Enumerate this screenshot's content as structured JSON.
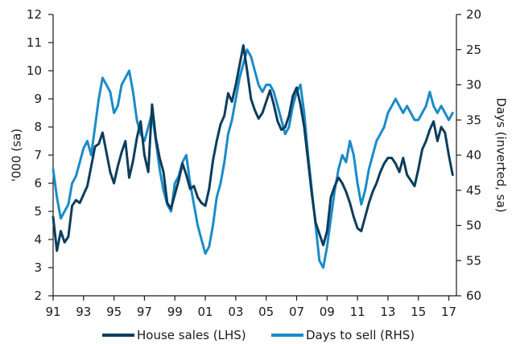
{
  "chart_data": {
    "type": "line",
    "title": "",
    "x_axis": {
      "range": [
        1991.0,
        2017.5
      ],
      "ticks": [
        1991,
        1993,
        1995,
        1997,
        1999,
        2001,
        2003,
        2005,
        2007,
        2009,
        2011,
        2013,
        2015,
        2017
      ],
      "tick_labels": [
        "91",
        "93",
        "95",
        "97",
        "99",
        "01",
        "03",
        "05",
        "07",
        "09",
        "11",
        "13",
        "15",
        "17"
      ]
    },
    "y_left": {
      "label": "'000 (sa)",
      "range": [
        2,
        12
      ],
      "ticks": [
        2,
        3,
        4,
        5,
        6,
        7,
        8,
        9,
        10,
        11,
        12
      ]
    },
    "y_right": {
      "label": "Days (inverted, sa)",
      "range": [
        20,
        60
      ],
      "inverted": true,
      "ticks": [
        20,
        25,
        30,
        35,
        40,
        45,
        50,
        55,
        60
      ]
    },
    "legend_position": "bottom-center",
    "grid": false,
    "series": [
      {
        "name": "House sales (LHS)",
        "axis": "left",
        "color": "#0d3d5c",
        "x": [
          1991.0,
          1991.25,
          1991.5,
          1991.75,
          1992.0,
          1992.25,
          1992.5,
          1992.75,
          1993.0,
          1993.25,
          1993.5,
          1993.75,
          1994.0,
          1994.25,
          1994.5,
          1994.75,
          1995.0,
          1995.25,
          1995.5,
          1995.75,
          1996.0,
          1996.25,
          1996.5,
          1996.75,
          1997.0,
          1997.25,
          1997.5,
          1997.75,
          1998.0,
          1998.25,
          1998.5,
          1998.75,
          1999.0,
          1999.25,
          1999.5,
          1999.75,
          2000.0,
          2000.25,
          2000.5,
          2000.75,
          2001.0,
          2001.25,
          2001.5,
          2001.75,
          2002.0,
          2002.25,
          2002.5,
          2002.75,
          2003.0,
          2003.25,
          2003.5,
          2003.75,
          2004.0,
          2004.25,
          2004.5,
          2004.75,
          2005.0,
          2005.25,
          2005.5,
          2005.75,
          2006.0,
          2006.25,
          2006.5,
          2006.75,
          2007.0,
          2007.25,
          2007.5,
          2007.75,
          2008.0,
          2008.25,
          2008.5,
          2008.75,
          2009.0,
          2009.25,
          2009.5,
          2009.75,
          2010.0,
          2010.25,
          2010.5,
          2010.75,
          2011.0,
          2011.25,
          2011.5,
          2011.75,
          2012.0,
          2012.25,
          2012.5,
          2012.75,
          2013.0,
          2013.25,
          2013.5,
          2013.75,
          2014.0,
          2014.25,
          2014.5,
          2014.75,
          2015.0,
          2015.25,
          2015.5,
          2015.75,
          2016.0,
          2016.25,
          2016.5,
          2016.75,
          2017.0,
          2017.25
        ],
        "values": [
          4.8,
          3.6,
          4.3,
          3.9,
          4.1,
          5.2,
          5.4,
          5.3,
          5.6,
          5.9,
          6.6,
          7.3,
          7.4,
          7.8,
          7.1,
          6.4,
          6.0,
          6.6,
          7.1,
          7.5,
          6.2,
          6.8,
          7.6,
          8.2,
          7.0,
          6.4,
          8.8,
          7.6,
          6.9,
          6.4,
          5.3,
          5.1,
          5.6,
          6.1,
          6.7,
          6.3,
          5.8,
          5.9,
          5.5,
          5.3,
          5.2,
          5.8,
          6.8,
          7.5,
          8.1,
          8.4,
          9.2,
          8.9,
          9.5,
          10.2,
          10.9,
          10.0,
          9.0,
          8.6,
          8.3,
          8.5,
          8.9,
          9.3,
          8.8,
          8.2,
          7.9,
          8.0,
          8.4,
          9.1,
          9.4,
          8.8,
          8.0,
          6.8,
          5.6,
          4.6,
          4.2,
          3.8,
          4.3,
          5.5,
          5.9,
          6.2,
          6.0,
          5.7,
          5.3,
          4.8,
          4.4,
          4.3,
          4.8,
          5.3,
          5.7,
          6.0,
          6.4,
          6.7,
          6.9,
          6.9,
          6.7,
          6.4,
          6.9,
          6.3,
          6.1,
          5.9,
          6.5,
          7.2,
          7.5,
          7.9,
          8.2,
          7.5,
          8.0,
          7.8,
          7.0,
          6.3
        ]
      },
      {
        "name": "Days to sell (RHS)",
        "axis": "right",
        "color": "#1b8bc9",
        "x": [
          1991.0,
          1991.25,
          1991.5,
          1991.75,
          1992.0,
          1992.25,
          1992.5,
          1992.75,
          1993.0,
          1993.25,
          1993.5,
          1993.75,
          1994.0,
          1994.25,
          1994.5,
          1994.75,
          1995.0,
          1995.25,
          1995.5,
          1995.75,
          1996.0,
          1996.25,
          1996.5,
          1996.75,
          1997.0,
          1997.25,
          1997.5,
          1997.75,
          1998.0,
          1998.25,
          1998.5,
          1998.75,
          1999.0,
          1999.25,
          1999.5,
          1999.75,
          2000.0,
          2000.25,
          2000.5,
          2000.75,
          2001.0,
          2001.25,
          2001.5,
          2001.75,
          2002.0,
          2002.25,
          2002.5,
          2002.75,
          2003.0,
          2003.25,
          2003.5,
          2003.75,
          2004.0,
          2004.25,
          2004.5,
          2004.75,
          2005.0,
          2005.25,
          2005.5,
          2005.75,
          2006.0,
          2006.25,
          2006.5,
          2006.75,
          2007.0,
          2007.25,
          2007.5,
          2007.75,
          2008.0,
          2008.25,
          2008.5,
          2008.75,
          2009.0,
          2009.25,
          2009.5,
          2009.75,
          2010.0,
          2010.25,
          2010.5,
          2010.75,
          2011.0,
          2011.25,
          2011.5,
          2011.75,
          2012.0,
          2012.25,
          2012.5,
          2012.75,
          2013.0,
          2013.25,
          2013.5,
          2013.75,
          2014.0,
          2014.25,
          2014.5,
          2014.75,
          2015.0,
          2015.25,
          2015.5,
          2015.75,
          2016.0,
          2016.25,
          2016.5,
          2016.75,
          2017.0,
          2017.25
        ],
        "values": [
          42,
          46,
          49,
          48,
          47,
          44,
          43,
          41,
          39,
          38,
          40,
          36,
          32,
          29,
          30,
          31,
          34,
          33,
          30,
          29,
          28,
          31,
          35,
          37,
          38,
          36,
          34,
          38,
          42,
          45,
          47,
          48,
          44,
          43,
          41,
          40,
          44,
          47,
          50,
          52,
          54,
          53,
          50,
          46,
          44,
          41,
          37,
          35,
          32,
          29,
          27,
          25,
          26,
          28,
          30,
          31,
          30,
          30,
          31,
          33,
          35,
          37,
          36,
          33,
          31,
          30,
          34,
          40,
          45,
          50,
          55,
          56,
          53,
          49,
          45,
          42,
          40,
          41,
          38,
          40,
          44,
          47,
          45,
          42,
          40,
          38,
          37,
          36,
          34,
          33,
          32,
          33,
          34,
          33,
          34,
          35,
          35,
          34,
          33,
          31,
          33,
          34,
          33,
          34,
          35,
          34
        ]
      }
    ]
  }
}
